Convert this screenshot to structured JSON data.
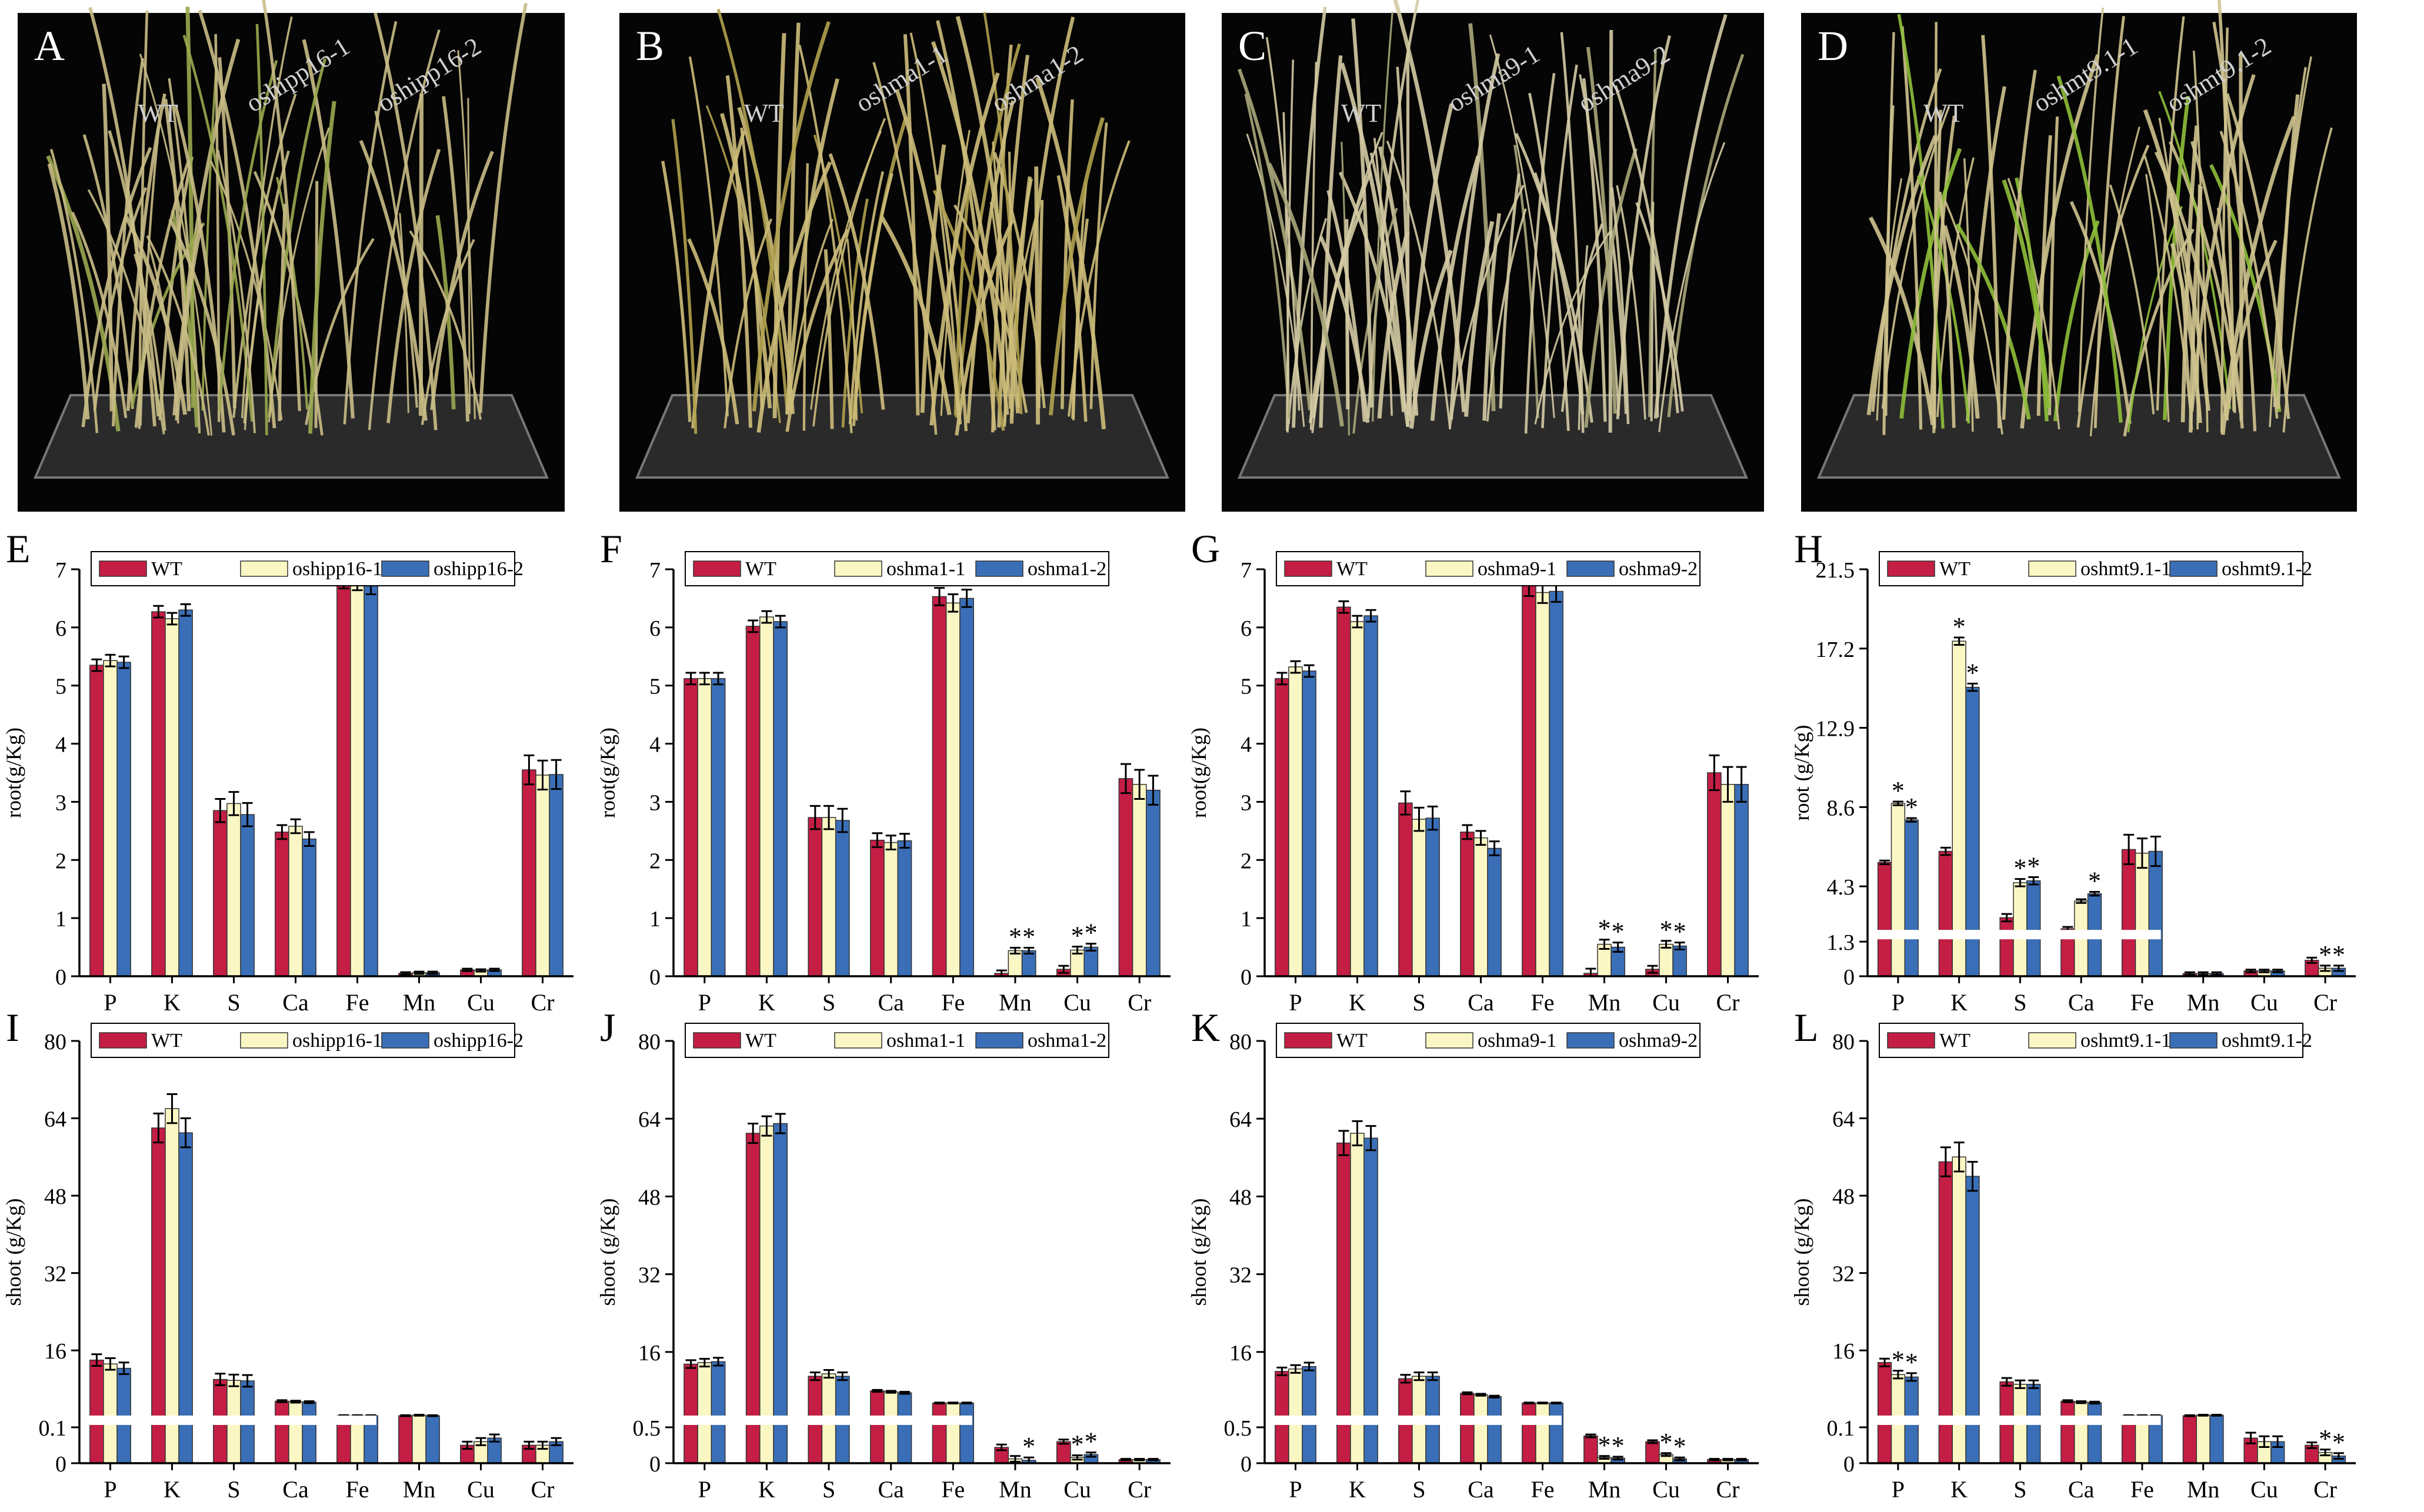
{
  "photos": [
    {
      "letter": "A",
      "labels": [
        "WT",
        "oshipp16-1",
        "oshipp16-2"
      ],
      "leaf_color": "#c9bc86",
      "accent_color": "#9aa84f"
    },
    {
      "letter": "B",
      "labels": [
        "WT",
        "oshma1-1",
        "oshma1-2"
      ],
      "leaf_color": "#cdbd7a",
      "accent_color": "#b0a14e"
    },
    {
      "letter": "C",
      "labels": [
        "WT",
        "oshma9-1",
        "oshma9-2"
      ],
      "leaf_color": "#d4cba4",
      "accent_color": "#a9a77a"
    },
    {
      "letter": "D",
      "labels": [
        "WT",
        "oshmt9.1-1",
        "oshmt9.1-2"
      ],
      "leaf_color": "#cfc38e",
      "accent_color": "#8fbf3a"
    }
  ],
  "colors": {
    "wt": "#c41e45",
    "mut1": "#fbf7c4",
    "mut2": "#3a6fb8",
    "axis": "#000000",
    "break_band": "#ffffff"
  },
  "chart_data": [
    {
      "panel": "E",
      "type": "bar",
      "categories": [
        "P",
        "K",
        "S",
        "Ca",
        "Fe",
        "Mn",
        "Cu",
        "Cr"
      ],
      "ylabel": "root(g/Kg)",
      "ylim": [
        0,
        7
      ],
      "ticks": [
        "0",
        "1",
        "2",
        "3",
        "4",
        "5",
        "6",
        "7"
      ],
      "legend": [
        "WT",
        "oshipp16-1",
        "oshipp16-2"
      ],
      "series": [
        {
          "name": "WT",
          "values": [
            5.35,
            6.27,
            2.85,
            2.48,
            6.82,
            0.05,
            0.11,
            3.55
          ]
        },
        {
          "name": "oshipp16-1",
          "values": [
            5.43,
            6.15,
            2.97,
            2.58,
            6.79,
            0.06,
            0.1,
            3.46
          ]
        },
        {
          "name": "oshipp16-2",
          "values": [
            5.4,
            6.3,
            2.78,
            2.36,
            6.72,
            0.06,
            0.11,
            3.47
          ]
        }
      ],
      "errors": [
        0.1,
        0.1,
        0.2,
        0.12,
        0.15,
        0.02,
        0.02,
        0.25
      ],
      "stars": []
    },
    {
      "panel": "F",
      "type": "bar",
      "categories": [
        "P",
        "K",
        "S",
        "Ca",
        "Fe",
        "Mn",
        "Cu",
        "Cr"
      ],
      "ylabel": "root(g/Kg)",
      "ylim": [
        0,
        7
      ],
      "ticks": [
        "0",
        "1",
        "2",
        "3",
        "4",
        "5",
        "6",
        "7"
      ],
      "legend": [
        "WT",
        "oshma1-1",
        "oshma1-2"
      ],
      "series": [
        {
          "name": "WT",
          "values": [
            5.12,
            6.02,
            2.73,
            2.34,
            6.53,
            0.05,
            0.12,
            3.4
          ]
        },
        {
          "name": "oshma1-1",
          "values": [
            5.12,
            6.18,
            2.73,
            2.3,
            6.42,
            0.44,
            0.45,
            3.3
          ]
        },
        {
          "name": "oshma1-2",
          "values": [
            5.12,
            6.1,
            2.68,
            2.33,
            6.5,
            0.44,
            0.5,
            3.2
          ]
        }
      ],
      "errors": [
        0.1,
        0.1,
        0.2,
        0.12,
        0.15,
        0.05,
        0.06,
        0.25
      ],
      "stars": [
        [
          5,
          1
        ],
        [
          5,
          2
        ],
        [
          6,
          1
        ],
        [
          6,
          2
        ]
      ]
    },
    {
      "panel": "G",
      "type": "bar",
      "categories": [
        "P",
        "K",
        "S",
        "Ca",
        "Fe",
        "Mn",
        "Cu",
        "Cr"
      ],
      "ylabel": "root(g/Kg)",
      "ylim": [
        0,
        7
      ],
      "ticks": [
        "0",
        "1",
        "2",
        "3",
        "4",
        "5",
        "6",
        "7"
      ],
      "legend": [
        "WT",
        "oshma9-1",
        "oshma9-2"
      ],
      "series": [
        {
          "name": "WT",
          "values": [
            5.12,
            6.35,
            2.98,
            2.48,
            6.72,
            0.05,
            0.12,
            3.5
          ]
        },
        {
          "name": "oshma9-1",
          "values": [
            5.32,
            6.1,
            2.7,
            2.38,
            6.6,
            0.55,
            0.55,
            3.3
          ]
        },
        {
          "name": "oshma9-2",
          "values": [
            5.25,
            6.2,
            2.72,
            2.2,
            6.62,
            0.5,
            0.52,
            3.3
          ]
        }
      ],
      "errors": [
        0.1,
        0.1,
        0.2,
        0.12,
        0.18,
        0.08,
        0.06,
        0.3
      ],
      "stars": [
        [
          5,
          1
        ],
        [
          5,
          2
        ],
        [
          6,
          1
        ],
        [
          6,
          2
        ]
      ]
    },
    {
      "panel": "H",
      "type": "bar",
      "categories": [
        "P",
        "K",
        "S",
        "Ca",
        "Fe",
        "Mn",
        "Cu",
        "Cr"
      ],
      "ylabel": "root (g/Kg)",
      "ylim": [
        0,
        21.5
      ],
      "ticks": [
        "0",
        "1.3",
        "4.3",
        "8.6",
        "12.9",
        "17.2",
        "21.5"
      ],
      "legend": [
        "WT",
        "oshmt9.1-1",
        "oshmt9.1-2"
      ],
      "series": [
        {
          "name": "WT",
          "values": [
            5.6,
            6.2,
            2.6,
            2.0,
            6.3,
            0.1,
            0.2,
            0.6
          ]
        },
        {
          "name": "oshmt9.1-1",
          "values": [
            8.8,
            17.6,
            4.5,
            3.5,
            6.1,
            0.1,
            0.2,
            0.3
          ]
        },
        {
          "name": "oshmt9.1-2",
          "values": [
            7.9,
            15.1,
            4.6,
            3.9,
            6.2,
            0.1,
            0.2,
            0.3
          ]
        }
      ],
      "errors": [
        0.1,
        0.2,
        0.2,
        0.1,
        0.8,
        0.05,
        0.05,
        0.1
      ],
      "stars": [
        [
          0,
          1
        ],
        [
          0,
          2
        ],
        [
          1,
          1
        ],
        [
          1,
          2
        ],
        [
          2,
          1
        ],
        [
          2,
          2
        ],
        [
          3,
          2
        ],
        [
          7,
          1
        ],
        [
          7,
          2
        ]
      ]
    },
    {
      "panel": "I",
      "type": "bar",
      "categories": [
        "P",
        "K",
        "S",
        "Ca",
        "Fe",
        "Mn",
        "Cu",
        "Cr"
      ],
      "ylabel": "shoot (g/Kg)",
      "ylim": [
        0,
        80
      ],
      "ticks": [
        "0",
        "0.1",
        "16",
        "32",
        "48",
        "64",
        "80"
      ],
      "legend": [
        "WT",
        "oshipp16-1",
        "oshipp16-2"
      ],
      "series": [
        {
          "name": "WT",
          "values": [
            14,
            62,
            10,
            5.5,
            2.5,
            2.5,
            0.05,
            0.05
          ]
        },
        {
          "name": "oshipp16-1",
          "values": [
            13.2,
            66,
            9.8,
            5.4,
            2.5,
            2.6,
            0.06,
            0.05
          ]
        },
        {
          "name": "oshipp16-2",
          "values": [
            12.3,
            61,
            9.7,
            5.3,
            2.5,
            2.5,
            0.07,
            0.06
          ]
        }
      ],
      "errors": [
        1.2,
        3,
        1.2,
        0.2,
        0.1,
        0.1,
        0.01,
        0.01
      ],
      "stars": []
    },
    {
      "panel": "J",
      "type": "bar",
      "categories": [
        "P",
        "K",
        "S",
        "Ca",
        "Fe",
        "Mn",
        "Cu",
        "Cr"
      ],
      "ylabel": "shoot (g/Kg)",
      "ylim": [
        0,
        80
      ],
      "ticks": [
        "0",
        "0.5",
        "16",
        "32",
        "48",
        "64",
        "80"
      ],
      "legend": [
        "WT",
        "oshma1-1",
        "oshma1-2"
      ],
      "series": [
        {
          "name": "WT",
          "values": [
            13.5,
            61,
            11,
            8,
            5.5,
            0.22,
            0.3,
            0.05
          ]
        },
        {
          "name": "oshma1-1",
          "values": [
            13.8,
            62.5,
            11.5,
            7.8,
            5.5,
            0.06,
            0.08,
            0.05
          ]
        },
        {
          "name": "oshma1-2",
          "values": [
            14,
            63,
            11,
            7.6,
            5.5,
            0.04,
            0.12,
            0.05
          ]
        }
      ],
      "errors": [
        0.8,
        2,
        0.8,
        0.2,
        0.1,
        0.04,
        0.03,
        0.01
      ],
      "stars": [
        [
          5,
          2
        ],
        [
          6,
          1
        ],
        [
          6,
          2
        ]
      ]
    },
    {
      "panel": "K",
      "type": "bar",
      "categories": [
        "P",
        "K",
        "S",
        "Ca",
        "Fe",
        "Mn",
        "Cu",
        "Cr"
      ],
      "ylabel": "shoot (g/Kg)",
      "ylim": [
        0,
        80
      ],
      "ticks": [
        "0",
        "0.5",
        "16",
        "32",
        "48",
        "64",
        "80"
      ],
      "legend": [
        "WT",
        "oshma9-1",
        "oshma9-2"
      ],
      "series": [
        {
          "name": "WT",
          "values": [
            12,
            59,
            10.5,
            7.5,
            5.5,
            0.38,
            0.3,
            0.05
          ]
        },
        {
          "name": "oshma9-1",
          "values": [
            12.5,
            61,
            11,
            7.2,
            5.5,
            0.08,
            0.12,
            0.05
          ]
        },
        {
          "name": "oshma9-2",
          "values": [
            13,
            60,
            11,
            6.8,
            5.5,
            0.07,
            0.06,
            0.05
          ]
        }
      ],
      "errors": [
        0.8,
        2.5,
        0.8,
        0.2,
        0.1,
        0.02,
        0.02,
        0.01
      ],
      "stars": [
        [
          5,
          1
        ],
        [
          5,
          2
        ],
        [
          6,
          1
        ],
        [
          6,
          2
        ]
      ]
    },
    {
      "panel": "L",
      "type": "bar",
      "categories": [
        "P",
        "K",
        "S",
        "Ca",
        "Fe",
        "Mn",
        "Cu",
        "Cr"
      ],
      "ylabel": "shoot (g/Kg)",
      "ylim": [
        0,
        80
      ],
      "ticks": [
        "0",
        "0.1",
        "16",
        "32",
        "48",
        "64",
        "80"
      ],
      "legend": [
        "WT",
        "oshmt9.1-1",
        "oshmt9.1-2"
      ],
      "series": [
        {
          "name": "WT",
          "values": [
            13.5,
            55,
            9.5,
            5.5,
            2.5,
            2.5,
            0.07,
            0.05
          ]
        },
        {
          "name": "oshmt9.1-1",
          "values": [
            11,
            56,
            9,
            5.3,
            2.5,
            2.6,
            0.06,
            0.03
          ]
        },
        {
          "name": "oshmt9.1-2",
          "values": [
            10.5,
            52,
            9,
            5.2,
            2.5,
            2.6,
            0.06,
            0.02
          ]
        }
      ],
      "errors": [
        0.8,
        3,
        0.8,
        0.2,
        0.1,
        0.1,
        0.015,
        0.008
      ],
      "stars": [
        [
          0,
          1
        ],
        [
          0,
          2
        ],
        [
          7,
          1
        ],
        [
          7,
          2
        ]
      ]
    }
  ]
}
